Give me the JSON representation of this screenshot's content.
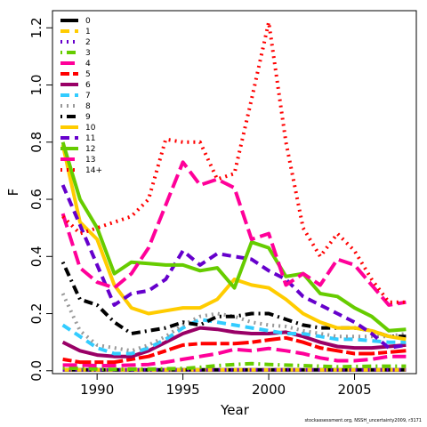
{
  "chart_data": {
    "type": "line",
    "xlabel": "Year",
    "ylabel": "F",
    "xlim": [
      1987.4,
      2008.6
    ],
    "ylim": [
      -0.01,
      1.26
    ],
    "x_ticks": [
      1990,
      1995,
      2000,
      2005
    ],
    "y_ticks": [
      0.0,
      0.2,
      0.4,
      0.6,
      0.8,
      1.0,
      1.2
    ],
    "y_tick_labels": [
      "0.0",
      "0.2",
      "0.4",
      "0.6",
      "0.8",
      "1.0",
      "1.2"
    ],
    "legend_position": "top-left",
    "x": [
      1988,
      1989,
      1990,
      1991,
      1992,
      1993,
      1994,
      1995,
      1996,
      1997,
      1998,
      1999,
      2000,
      2001,
      2002,
      2003,
      2004,
      2005,
      2006,
      2007,
      2008
    ],
    "series": [
      {
        "name": "0",
        "color": "#000000",
        "dash": "solid",
        "values": [
          0.003,
          0.003,
          0.003,
          0.003,
          0.003,
          0.003,
          0.003,
          0.003,
          0.003,
          0.003,
          0.003,
          0.003,
          0.003,
          0.003,
          0.003,
          0.003,
          0.003,
          0.003,
          0.003,
          0.003,
          0.003
        ]
      },
      {
        "name": "1",
        "color": "#FFCC00",
        "dash": "dashed",
        "values": [
          0.003,
          0.003,
          0.003,
          0.003,
          0.003,
          0.003,
          0.003,
          0.003,
          0.003,
          0.003,
          0.003,
          0.003,
          0.003,
          0.003,
          0.003,
          0.003,
          0.003,
          0.003,
          0.003,
          0.003,
          0.003
        ]
      },
      {
        "name": "2",
        "color": "#6600CC",
        "dash": "dotted",
        "values": [
          0.003,
          0.003,
          0.003,
          0.003,
          0.003,
          0.003,
          0.003,
          0.003,
          0.003,
          0.003,
          0.003,
          0.003,
          0.003,
          0.003,
          0.003,
          0.003,
          0.003,
          0.003,
          0.003,
          0.003,
          0.003
        ]
      },
      {
        "name": "3",
        "color": "#66CC00",
        "dash": "dotdash",
        "values": [
          0.01,
          0.008,
          0.006,
          0.005,
          0.006,
          0.006,
          0.007,
          0.008,
          0.012,
          0.018,
          0.022,
          0.025,
          0.022,
          0.02,
          0.018,
          0.016,
          0.014,
          0.015,
          0.016,
          0.016,
          0.016
        ]
      },
      {
        "name": "4",
        "color": "#FF0099",
        "dash": "longdash",
        "values": [
          0.02,
          0.02,
          0.018,
          0.018,
          0.02,
          0.022,
          0.03,
          0.04,
          0.05,
          0.06,
          0.075,
          0.07,
          0.078,
          0.07,
          0.06,
          0.045,
          0.035,
          0.035,
          0.04,
          0.05,
          0.05
        ]
      },
      {
        "name": "5",
        "color": "#FF0000",
        "dash": "twodash",
        "values": [
          0.04,
          0.03,
          0.03,
          0.03,
          0.04,
          0.05,
          0.07,
          0.09,
          0.095,
          0.095,
          0.095,
          0.1,
          0.108,
          0.115,
          0.1,
          0.08,
          0.07,
          0.06,
          0.06,
          0.065,
          0.07
        ]
      },
      {
        "name": "6",
        "color": "#990066",
        "dash": "solid",
        "values": [
          0.1,
          0.07,
          0.055,
          0.05,
          0.05,
          0.07,
          0.1,
          0.13,
          0.15,
          0.145,
          0.135,
          0.13,
          0.13,
          0.135,
          0.12,
          0.1,
          0.085,
          0.08,
          0.08,
          0.085,
          0.09
        ]
      },
      {
        "name": "7",
        "color": "#33CCFF",
        "dash": "dashed",
        "values": [
          0.16,
          0.12,
          0.08,
          0.06,
          0.06,
          0.08,
          0.11,
          0.15,
          0.18,
          0.17,
          0.16,
          0.15,
          0.14,
          0.13,
          0.13,
          0.12,
          0.11,
          0.11,
          0.105,
          0.1,
          0.1
        ]
      },
      {
        "name": "8",
        "color": "#999999",
        "dash": "dotted",
        "values": [
          0.27,
          0.14,
          0.09,
          0.08,
          0.07,
          0.09,
          0.12,
          0.16,
          0.19,
          0.2,
          0.19,
          0.17,
          0.16,
          0.155,
          0.14,
          0.13,
          0.12,
          0.12,
          0.12,
          0.12,
          0.13
        ]
      },
      {
        "name": "9",
        "color": "#000000",
        "dash": "dotdash",
        "values": [
          0.38,
          0.25,
          0.23,
          0.17,
          0.13,
          0.14,
          0.15,
          0.17,
          0.16,
          0.19,
          0.19,
          0.2,
          0.2,
          0.18,
          0.16,
          0.15,
          0.15,
          0.15,
          0.14,
          0.12,
          0.12
        ]
      },
      {
        "name": "10",
        "color": "#FFCC00",
        "dash": "solid",
        "values": [
          0.79,
          0.52,
          0.46,
          0.3,
          0.22,
          0.2,
          0.21,
          0.22,
          0.22,
          0.25,
          0.32,
          0.3,
          0.29,
          0.25,
          0.2,
          0.17,
          0.15,
          0.15,
          0.14,
          0.12,
          0.11
        ]
      },
      {
        "name": "11",
        "color": "#6600CC",
        "dash": "dashed",
        "values": [
          0.65,
          0.51,
          0.37,
          0.23,
          0.27,
          0.28,
          0.32,
          0.42,
          0.37,
          0.41,
          0.4,
          0.39,
          0.35,
          0.32,
          0.26,
          0.23,
          0.2,
          0.17,
          0.13,
          0.08,
          0.09
        ]
      },
      {
        "name": "12",
        "color": "#66CC00",
        "dash": "solid",
        "values": [
          0.8,
          0.6,
          0.5,
          0.34,
          0.38,
          0.375,
          0.37,
          0.37,
          0.35,
          0.36,
          0.29,
          0.45,
          0.43,
          0.33,
          0.34,
          0.27,
          0.26,
          0.22,
          0.19,
          0.14,
          0.145
        ]
      },
      {
        "name": "13",
        "color": "#FF0099",
        "dash": "longdash",
        "values": [
          0.55,
          0.36,
          0.31,
          0.29,
          0.34,
          0.43,
          0.58,
          0.73,
          0.65,
          0.67,
          0.64,
          0.46,
          0.48,
          0.3,
          0.34,
          0.3,
          0.39,
          0.37,
          0.3,
          0.23,
          0.24
        ]
      },
      {
        "name": "14+",
        "color": "#FF0000",
        "dash": "dotted",
        "values": [
          0.54,
          0.48,
          0.5,
          0.52,
          0.54,
          0.6,
          0.81,
          0.8,
          0.8,
          0.67,
          0.69,
          0.95,
          1.22,
          0.8,
          0.5,
          0.4,
          0.48,
          0.42,
          0.32,
          0.24,
          0.24
        ]
      }
    ]
  },
  "footnote": "stockassessment.org, NSSH_uncertainty2009, r3171"
}
